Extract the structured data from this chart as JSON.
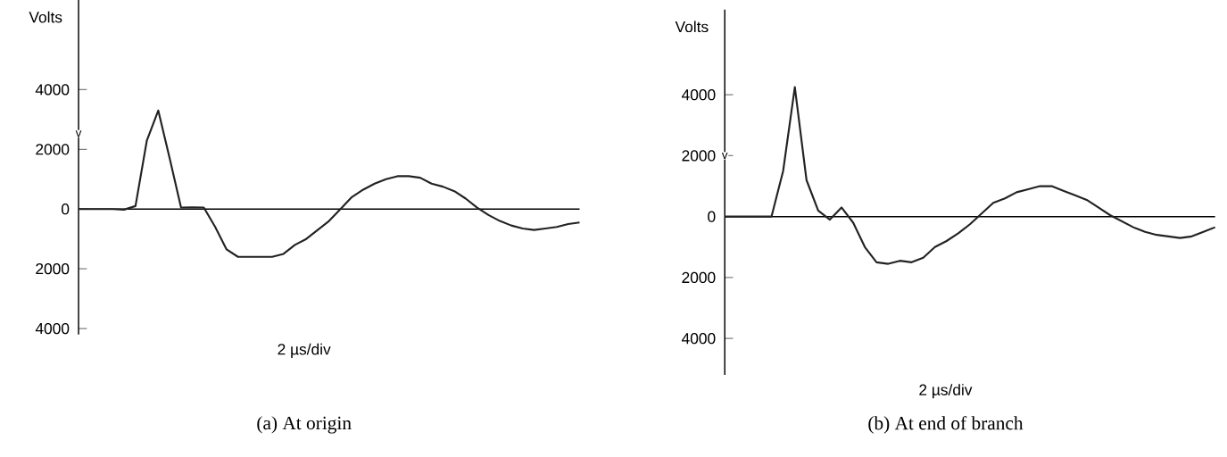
{
  "chart_data": [
    {
      "type": "line",
      "title": "(a) At origin",
      "xlabel": "2 µs/div",
      "ylabel": "Volts",
      "annotations": [
        "v"
      ],
      "categories": [
        null,
        null,
        null,
        null,
        null,
        null,
        null,
        null,
        null,
        null,
        null,
        null,
        null,
        null,
        null,
        null,
        null,
        null,
        null,
        null,
        null,
        null,
        null,
        null,
        null,
        null,
        null,
        null,
        null,
        null,
        null,
        null,
        null,
        null,
        null,
        null,
        null,
        null,
        null,
        null,
        null,
        null,
        null,
        null,
        null
      ],
      "series": [
        {
          "color": "#222222",
          "values": [
            0,
            0,
            0,
            0,
            -20,
            100,
            2300,
            3300,
            1700,
            50,
            60,
            50,
            -600,
            -1350,
            -1600,
            -1600,
            -1600,
            -1600,
            -1500,
            -1200,
            -1000,
            -700,
            -400,
            0,
            400,
            650,
            850,
            1000,
            1100,
            1100,
            1050,
            850,
            750,
            600,
            350,
            50,
            -200,
            -400,
            -550,
            -650,
            -700,
            -650,
            -600,
            -500,
            -450
          ]
        }
      ],
      "ylim": [
        -4200,
        7000
      ],
      "yticks": [
        {
          "value": 4000,
          "label": "4000"
        },
        2000,
        0,
        {
          "value": -2000,
          "label": "2000"
        },
        {
          "value": -4000,
          "label": "4000"
        }
      ]
    },
    {
      "type": "line",
      "title": "(b) At end of branch",
      "xlabel": "2 µs/div",
      "ylabel": "Volts",
      "annotations": [
        "v"
      ],
      "categories": [
        null,
        null,
        null,
        null,
        null,
        null,
        null,
        null,
        null,
        null,
        null,
        null,
        null,
        null,
        null,
        null,
        null,
        null,
        null,
        null,
        null,
        null,
        null,
        null,
        null,
        null,
        null,
        null,
        null,
        null,
        null,
        null,
        null,
        null,
        null,
        null,
        null,
        null,
        null,
        null,
        null,
        null,
        null
      ],
      "series": [
        {
          "color": "#222222",
          "values": [
            0,
            0,
            0,
            0,
            0,
            1500,
            4250,
            1200,
            200,
            -100,
            300,
            -200,
            -1000,
            -1500,
            -1550,
            -1450,
            -1500,
            -1350,
            -1000,
            -800,
            -550,
            -250,
            100,
            450,
            600,
            800,
            900,
            1000,
            1000,
            850,
            700,
            550,
            300,
            50,
            -150,
            -350,
            -500,
            -600,
            -650,
            -700,
            -650,
            -500,
            -350
          ]
        }
      ],
      "ylim": [
        -5200,
        6800
      ],
      "yticks": [
        {
          "value": 4000,
          "label": "4000"
        },
        2000,
        0,
        {
          "value": -2000,
          "label": "2000"
        },
        {
          "value": -4000,
          "label": "4000"
        }
      ]
    }
  ]
}
